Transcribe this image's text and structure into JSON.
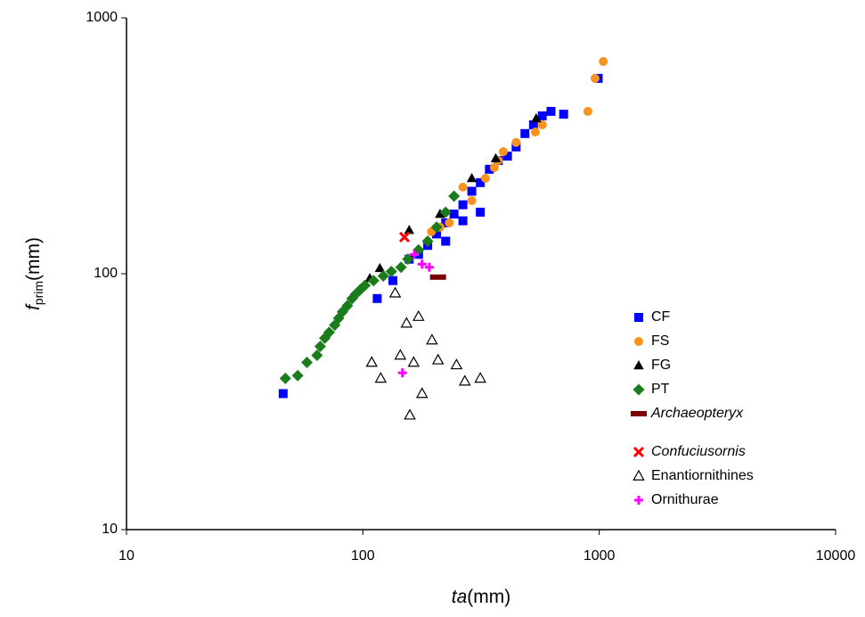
{
  "chart_data": {
    "type": "scatter",
    "xlabel": [
      "ta",
      "(mm)"
    ],
    "ylabel": [
      "f",
      "prim",
      "(mm)"
    ],
    "xscale": "log",
    "yscale": "log",
    "xlim": [
      10,
      10000
    ],
    "ylim": [
      10,
      1000
    ],
    "xticks": [
      10,
      100,
      1000,
      10000
    ],
    "yticks": [
      10,
      100,
      1000
    ],
    "legend": "lower right",
    "series": [
      {
        "name": "CF",
        "color": "#0000ff",
        "marker": "square",
        "italic": false,
        "x": [
          46,
          115,
          134,
          157,
          172,
          188,
          205,
          224,
          243,
          265,
          289,
          314,
          314,
          343,
          374,
          409,
          445,
          485,
          527,
          574,
          625,
          707,
          990,
          224,
          265
        ],
        "values": [
          34,
          80,
          94,
          114,
          119,
          129,
          143,
          158,
          171,
          186,
          210,
          227,
          174,
          256,
          277,
          288,
          313,
          353,
          382,
          414,
          431,
          420,
          580,
          134,
          161
        ]
      },
      {
        "name": "FS",
        "color": "#f7931e",
        "marker": "circle",
        "italic": false,
        "x": [
          1040,
          960,
          895,
          574,
          537,
          445,
          393,
          360,
          330,
          289,
          265,
          232,
          212,
          195,
          374
        ],
        "values": [
          675,
          580,
          431,
          382,
          358,
          326,
          300,
          260,
          236,
          193,
          218,
          158,
          152,
          146,
          277
        ]
      },
      {
        "name": "FG",
        "color": "#000000",
        "marker": "triangle",
        "italic": false,
        "x": [
          107,
          118,
          157,
          212,
          289,
          365,
          541
        ],
        "values": [
          96,
          105,
          148,
          171,
          236,
          282,
          404
        ]
      },
      {
        "name": "PT",
        "color": "#1b7c1b",
        "marker": "diamond",
        "italic": false,
        "x": [
          47,
          53,
          58,
          64,
          66,
          69,
          72,
          76,
          79,
          82,
          86,
          90,
          93,
          98,
          102,
          111,
          122,
          132,
          145,
          155,
          172,
          188,
          205,
          224,
          243
        ],
        "values": [
          39,
          40,
          45,
          48,
          52,
          56,
          59,
          63,
          67,
          71,
          75,
          80,
          83,
          87,
          90,
          94,
          98,
          102,
          106,
          114,
          124,
          134,
          152,
          174,
          201
        ]
      },
      {
        "name": "Archaeopteryx",
        "color": "#7b0000",
        "marker": "dash",
        "italic": true,
        "x": [
          208
        ],
        "values": [
          97
        ]
      },
      {
        "name": "Confuciusornis",
        "color": "#ff0000",
        "marker": "cross",
        "italic": true,
        "x": [
          150
        ],
        "values": [
          139
        ]
      },
      {
        "name": "Enantiornithines",
        "color": "#000000",
        "marker": "open-triangle",
        "italic": false,
        "x": [
          137,
          153,
          172,
          196,
          109,
          119,
          144,
          164,
          208,
          249,
          270,
          314,
          178,
          158
        ],
        "values": [
          84,
          64,
          68,
          55,
          45,
          39,
          48,
          45,
          46,
          44,
          38,
          39,
          34,
          28
        ]
      },
      {
        "name": "Ornithurae",
        "color": "#ff00ff",
        "marker": "plus",
        "italic": false,
        "x": [
          147,
          178,
          191,
          165
        ],
        "values": [
          41,
          109,
          106,
          119
        ]
      }
    ]
  }
}
